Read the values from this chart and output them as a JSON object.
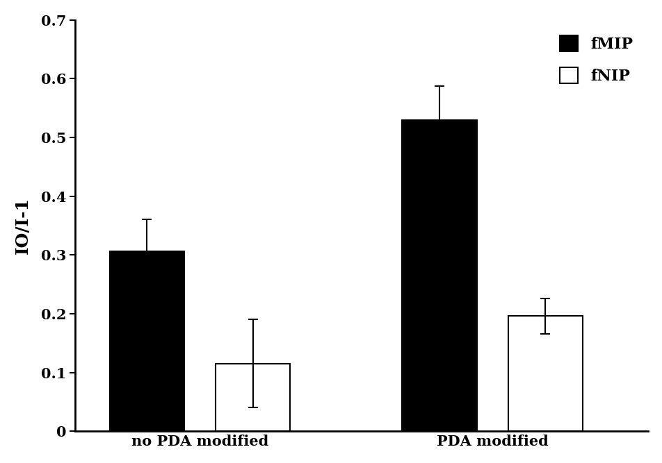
{
  "groups": [
    "no PDA modified",
    "PDA modified"
  ],
  "mip_values": [
    0.306,
    0.53
  ],
  "nip_values": [
    0.115,
    0.196
  ],
  "mip_errors": [
    0.055,
    0.058
  ],
  "nip_errors": [
    0.075,
    0.03
  ],
  "ylabel": "IO/I-1",
  "ylim": [
    0,
    0.7
  ],
  "yticks": [
    0,
    0.1,
    0.2,
    0.3,
    0.4,
    0.5,
    0.6,
    0.7
  ],
  "legend_mip": "fMIP",
  "legend_nip": "fNIP",
  "bar_width": 0.12,
  "mip_color": "#000000",
  "nip_color": "#ffffff",
  "nip_edgecolor": "#000000",
  "background_color": "#ffffff",
  "label_fontsize": 18,
  "tick_fontsize": 15,
  "legend_fontsize": 16,
  "group_centers": [
    0.28,
    0.75
  ],
  "bar_gap": 0.05
}
